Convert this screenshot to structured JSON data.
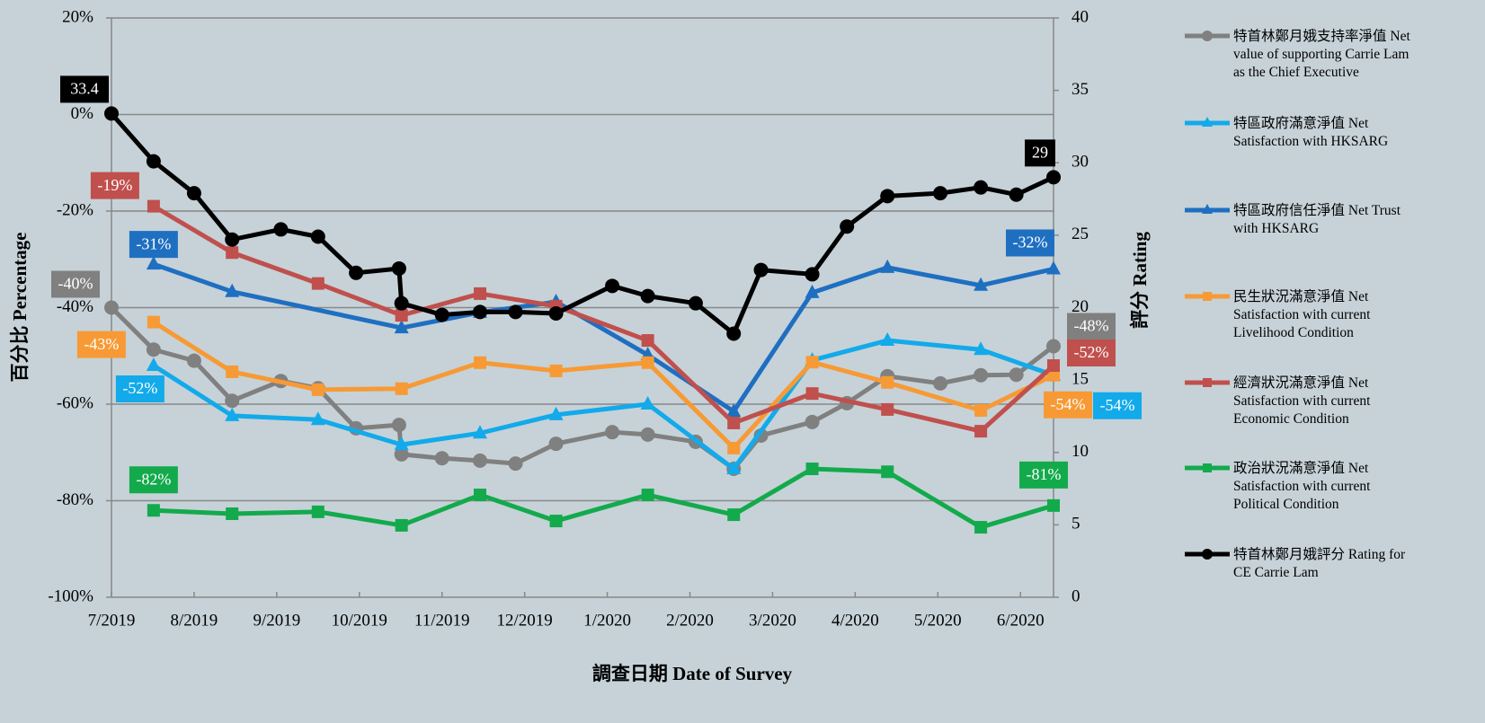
{
  "chart_data": {
    "type": "line",
    "x_label": "調查日期 Date of Survey",
    "y_label": "百分比 Percentage",
    "y2_label": "評分 Rating",
    "xlim": [
      0,
      11.4
    ],
    "xticks": [
      {
        "value": 0,
        "label": "7/2019"
      },
      {
        "value": 1,
        "label": "8/2019"
      },
      {
        "value": 2,
        "label": "9/2019"
      },
      {
        "value": 3,
        "label": "10/2019"
      },
      {
        "value": 4,
        "label": "11/2019"
      },
      {
        "value": 5,
        "label": "12/2019"
      },
      {
        "value": 6,
        "label": "1/2020"
      },
      {
        "value": 7,
        "label": "2/2020"
      },
      {
        "value": 8,
        "label": "3/2020"
      },
      {
        "value": 9,
        "label": "4/2020"
      },
      {
        "value": 10,
        "label": "5/2020"
      },
      {
        "value": 11,
        "label": "6/2020"
      }
    ],
    "ylim": [
      -100,
      20
    ],
    "yticks": [
      {
        "value": 20,
        "label": "20%"
      },
      {
        "value": 0,
        "label": "0%"
      },
      {
        "value": -20,
        "label": "-20%"
      },
      {
        "value": -40,
        "label": "-40%"
      },
      {
        "value": -60,
        "label": "-60%"
      },
      {
        "value": -80,
        "label": "-80%"
      },
      {
        "value": -100,
        "label": "-100%"
      }
    ],
    "y2lim": [
      0,
      40
    ],
    "y2ticks": [
      0,
      5,
      10,
      15,
      20,
      25,
      30,
      35,
      40
    ],
    "grid": true,
    "legend": "right",
    "series": [
      {
        "name": "特首林鄭月娥支持率淨值 Net value of supporting Carrie Lam as the Chief Executive",
        "color": "#808080",
        "marker": "circle",
        "x": [
          0,
          0.51,
          1.0,
          1.46,
          2.05,
          2.5,
          2.96,
          3.48,
          3.51,
          4.0,
          4.46,
          4.89,
          5.38,
          6.06,
          6.49,
          7.07,
          7.53,
          7.86,
          8.48,
          8.9,
          9.39,
          10.03,
          10.52,
          10.95,
          11.4
        ],
        "values": [
          -40,
          -48.7,
          -51,
          -59.3,
          -55.2,
          -56.7,
          -65,
          -64.3,
          -70.4,
          -71.2,
          -71.7,
          -72.3,
          -68.2,
          -65.8,
          -66.3,
          -67.8,
          -73.4,
          -66.5,
          -63.7,
          -59.8,
          -54.2,
          -55.7,
          -54,
          -53.9,
          -48
        ],
        "value_labels": [
          "-40%",
          null,
          null,
          null,
          null,
          null,
          null,
          null,
          null,
          null,
          null,
          null,
          null,
          null,
          null,
          null,
          null,
          null,
          null,
          null,
          null,
          null,
          null,
          null,
          "-48%"
        ]
      },
      {
        "name": "特區政府滿意淨值 Net Satisfaction with HKSARG",
        "color": "#12aaea",
        "marker": "triangle",
        "x": [
          0.51,
          1.46,
          2.5,
          3.51,
          4.46,
          5.38,
          6.49,
          7.53,
          8.48,
          9.39,
          10.52,
          11.4
        ],
        "values": [
          -52,
          -62.4,
          -63.2,
          -68.4,
          -66,
          -62.2,
          -60,
          -73.4,
          -50.9,
          -46.8,
          -48.7,
          -54
        ],
        "value_labels": [
          "-52%",
          null,
          null,
          null,
          null,
          null,
          null,
          null,
          null,
          null,
          null,
          "-54%"
        ]
      },
      {
        "name": "特區政府信任淨值 Net Trust with HKSARG",
        "color": "#1f6fc1",
        "marker": "triangle",
        "x": [
          0.51,
          1.46,
          3.51,
          4.46,
          5.38,
          6.49,
          7.53,
          8.48,
          9.39,
          10.52,
          11.4
        ],
        "values": [
          -31,
          -36.7,
          -44.2,
          -41,
          -38.8,
          -49.8,
          -61.5,
          -36.9,
          -31.7,
          -35.4,
          -32
        ],
        "value_labels": [
          "-31%",
          null,
          null,
          null,
          null,
          null,
          null,
          null,
          null,
          null,
          "-32%"
        ]
      },
      {
        "name": "民生狀況滿意淨值 Net Satisfaction with current Livelihood Condition",
        "color": "#f79a35",
        "marker": "square",
        "x": [
          0.51,
          1.46,
          2.5,
          3.51,
          4.46,
          5.38,
          6.49,
          7.53,
          8.48,
          9.39,
          10.52,
          11.4
        ],
        "values": [
          -43,
          -53.3,
          -57,
          -56.8,
          -51.4,
          -53.1,
          -51.4,
          -69.1,
          -51.3,
          -55.5,
          -61.3,
          -54
        ],
        "value_labels": [
          "-43%",
          null,
          null,
          null,
          null,
          null,
          null,
          null,
          null,
          null,
          null,
          "-54%"
        ]
      },
      {
        "name": "經濟狀況滿意淨值 Net Satisfaction with current Economic Condition",
        "color": "#c0504d",
        "marker": "square",
        "x": [
          0.51,
          1.46,
          2.5,
          3.51,
          4.46,
          5.38,
          6.49,
          7.53,
          8.48,
          9.39,
          10.52,
          11.4
        ],
        "values": [
          -19,
          -28.6,
          -35,
          -41.6,
          -37.1,
          -39.7,
          -46.8,
          -63.9,
          -57.8,
          -61.1,
          -65.6,
          -52
        ],
        "value_labels": [
          "-19%",
          null,
          null,
          null,
          null,
          null,
          null,
          null,
          null,
          null,
          null,
          "-52%"
        ]
      },
      {
        "name": "政治狀況滿意淨值 Net Satisfaction with current Political Condition",
        "color": "#13aa4c",
        "marker": "square",
        "x": [
          0.51,
          1.46,
          2.5,
          3.51,
          4.46,
          5.38,
          6.49,
          7.53,
          8.48,
          9.39,
          10.52,
          11.4
        ],
        "values": [
          -82,
          -82.7,
          -82.3,
          -85.1,
          -78.8,
          -84.2,
          -78.8,
          -82.9,
          -73.4,
          -74,
          -85.5,
          -81
        ],
        "value_labels": [
          "-82%",
          null,
          null,
          null,
          null,
          null,
          null,
          null,
          null,
          null,
          null,
          "-81%"
        ]
      },
      {
        "name": "特首林鄭月娥評分 Rating for CE Carrie Lam",
        "color": "#000000",
        "marker": "circle",
        "axis": "y2",
        "x": [
          0,
          0.51,
          1.0,
          1.46,
          2.05,
          2.5,
          2.96,
          3.48,
          3.51,
          4.0,
          4.46,
          4.89,
          5.38,
          6.06,
          6.49,
          7.07,
          7.53,
          7.86,
          8.48,
          8.9,
          9.39,
          10.03,
          10.52,
          10.95,
          11.4
        ],
        "values": [
          33.4,
          30.1,
          27.9,
          24.7,
          25.4,
          24.9,
          22.4,
          22.7,
          20.3,
          19.5,
          19.7,
          19.7,
          19.6,
          21.5,
          20.8,
          20.3,
          18.2,
          22.6,
          22.3,
          25.6,
          27.7,
          27.9,
          28.3,
          27.8,
          29.0
        ]
      }
    ]
  }
}
